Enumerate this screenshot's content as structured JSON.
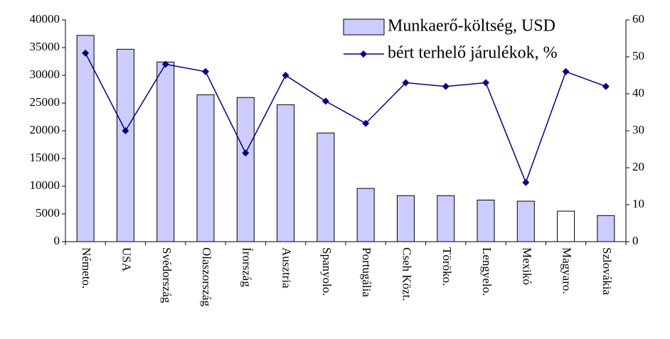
{
  "chart_data": {
    "type": "bar-line",
    "categories": [
      "Németo.",
      "USA",
      "Svédország",
      "Olaszország",
      "Írország",
      "Ausztria",
      "Spanyolo.",
      "Portugália",
      "Cseh Közt.",
      "Töröko.",
      "Lengyelo.",
      "Mexikó",
      "Magyaro.",
      "Szlovákia"
    ],
    "series": [
      {
        "name": "Munkaerő-költség, USD",
        "type": "bar",
        "color": "#ccccff",
        "colors": [
          "#ccccff",
          "#ccccff",
          "#ccccff",
          "#ccccff",
          "#ccccff",
          "#ccccff",
          "#ccccff",
          "#ccccff",
          "#ccccff",
          "#ccccff",
          "#ccccff",
          "#ccccff",
          "#ffffff",
          "#ccccff"
        ],
        "values": [
          37200,
          34700,
          32400,
          26500,
          26000,
          24700,
          19600,
          9600,
          8300,
          8300,
          7500,
          7300,
          5500,
          4700
        ]
      },
      {
        "name": "bért terhelő járulékok, %",
        "type": "line",
        "color": "#000080",
        "axis": "y2",
        "values": [
          51,
          30,
          48,
          46,
          24,
          45,
          38,
          32,
          43,
          42,
          43,
          16,
          46,
          42
        ]
      }
    ],
    "ylim": [
      0,
      40000
    ],
    "yticks": [
      0,
      5000,
      10000,
      15000,
      20000,
      25000,
      30000,
      35000,
      40000
    ],
    "y2lim": [
      0,
      60
    ],
    "y2ticks": [
      0,
      10,
      20,
      30,
      40,
      50,
      60
    ],
    "legend": "top-right"
  }
}
